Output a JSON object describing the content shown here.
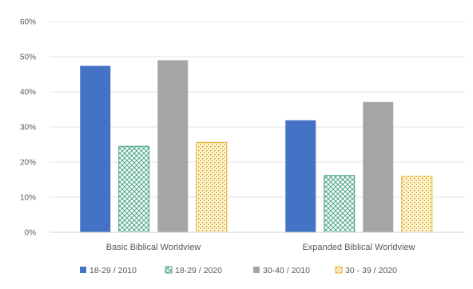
{
  "chart_data": {
    "type": "bar",
    "categories": [
      "Basic Biblical Worldview",
      "Expanded Biblical Worldview"
    ],
    "series": [
      {
        "name": "18-29 / 2010",
        "values": [
          47.4,
          31.9
        ],
        "color": "#4472c4",
        "pattern": "solid"
      },
      {
        "name": "18-29 / 2020",
        "values": [
          24.5,
          16.2
        ],
        "color": "#4aa48a",
        "pattern": "crosshatch"
      },
      {
        "name": "30-40 / 2010",
        "values": [
          49.0,
          37.1
        ],
        "color": "#a5a5a5",
        "pattern": "solid"
      },
      {
        "name": "30 - 39 / 2020",
        "values": [
          25.6,
          15.9
        ],
        "color": "#e6b431",
        "pattern": "dots"
      }
    ],
    "yticks": [
      "0%",
      "10%",
      "20%",
      "30%",
      "40%",
      "50%",
      "60%"
    ],
    "ylim": [
      0,
      60
    ],
    "grid": true,
    "legend_position": "bottom",
    "title": "",
    "xlabel": "",
    "ylabel": ""
  }
}
